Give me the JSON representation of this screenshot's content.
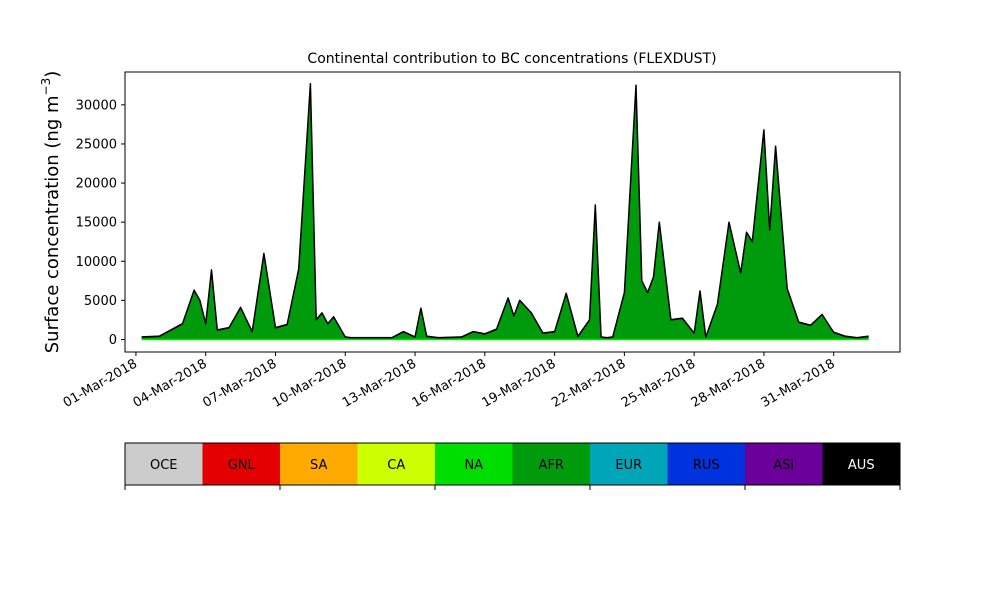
{
  "chart_data": {
    "type": "area",
    "title": "Continental contribution to BC concentrations (FLEXDUST)",
    "ylabel": "Surface concentration (ng m",
    "ylabel_exponent": "−3",
    "ylabel_close": ")",
    "xlabel": "",
    "x_start": "2018-03-01",
    "x_end": "2018-04-02",
    "ylim": [
      -1600,
      34200
    ],
    "x_tick_labels": [
      "01-Mar-2018",
      "04-Mar-2018",
      "07-Mar-2018",
      "10-Mar-2018",
      "13-Mar-2018",
      "16-Mar-2018",
      "19-Mar-2018",
      "22-Mar-2018",
      "25-Mar-2018",
      "28-Mar-2018",
      "31-Mar-2018"
    ],
    "x_tick_dates": [
      "2018-03-01",
      "2018-03-04",
      "2018-03-07",
      "2018-03-10",
      "2018-03-13",
      "2018-03-16",
      "2018-03-19",
      "2018-03-22",
      "2018-03-25",
      "2018-03-28",
      "2018-03-31"
    ],
    "y_ticks": [
      0,
      5000,
      10000,
      15000,
      20000,
      25000,
      30000
    ],
    "y_tick_labels": [
      "0",
      "5000",
      "10000",
      "15000",
      "20000",
      "25000",
      "30000"
    ],
    "grid": false,
    "dominant_series": "AFR",
    "series_colors": {
      "OCE": "#cccccc",
      "GNL": "#e50000",
      "SA": "#ffaa00",
      "CA": "#ccff00",
      "NA": "#00dd00",
      "AFR": "#009a0d",
      "EUR": "#00a6b8",
      "RUS": "#0033dd",
      "ASI": "#6a0099",
      "AUS": "#000000"
    },
    "total": {
      "x": [
        "2018-03-01 06:00",
        "2018-03-02 00:00",
        "2018-03-03 00:00",
        "2018-03-03 12:00",
        "2018-03-03 18:00",
        "2018-03-04 00:00",
        "2018-03-04 06:00",
        "2018-03-04 12:00",
        "2018-03-05 00:00",
        "2018-03-05 12:00",
        "2018-03-06 00:00",
        "2018-03-06 12:00",
        "2018-03-07 00:00",
        "2018-03-07 12:00",
        "2018-03-08 00:00",
        "2018-03-08 12:00",
        "2018-03-08 18:00",
        "2018-03-09 00:00",
        "2018-03-09 06:00",
        "2018-03-09 12:00",
        "2018-03-10 00:00",
        "2018-03-10 06:00",
        "2018-03-11 00:00",
        "2018-03-12 00:00",
        "2018-03-12 12:00",
        "2018-03-13 00:00",
        "2018-03-13 06:00",
        "2018-03-13 12:00",
        "2018-03-14 00:00",
        "2018-03-15 00:00",
        "2018-03-15 12:00",
        "2018-03-16 00:00",
        "2018-03-16 12:00",
        "2018-03-17 00:00",
        "2018-03-17 06:00",
        "2018-03-17 12:00",
        "2018-03-18 00:00",
        "2018-03-18 12:00",
        "2018-03-19 00:00",
        "2018-03-19 12:00",
        "2018-03-20 00:00",
        "2018-03-20 12:00",
        "2018-03-20 18:00",
        "2018-03-21 00:00",
        "2018-03-21 06:00",
        "2018-03-21 12:00",
        "2018-03-22 00:00",
        "2018-03-22 12:00",
        "2018-03-22 18:00",
        "2018-03-23 00:00",
        "2018-03-23 06:00",
        "2018-03-23 12:00",
        "2018-03-24 00:00",
        "2018-03-24 12:00",
        "2018-03-25 00:00",
        "2018-03-25 06:00",
        "2018-03-25 12:00",
        "2018-03-26 00:00",
        "2018-03-26 12:00",
        "2018-03-27 00:00",
        "2018-03-27 06:00",
        "2018-03-27 12:00",
        "2018-03-28 00:00",
        "2018-03-28 06:00",
        "2018-03-28 12:00",
        "2018-03-29 00:00",
        "2018-03-29 12:00",
        "2018-03-30 00:00",
        "2018-03-30 12:00",
        "2018-03-31 00:00",
        "2018-03-31 12:00",
        "2018-04-01 00:00",
        "2018-04-01 12:00"
      ],
      "y": [
        300,
        400,
        2000,
        6300,
        5000,
        2000,
        8900,
        1200,
        1500,
        4100,
        1000,
        11000,
        1500,
        1900,
        9000,
        32700,
        2500,
        3400,
        2000,
        2900,
        300,
        200,
        200,
        200,
        1000,
        300,
        4000,
        400,
        200,
        300,
        1000,
        700,
        1300,
        5300,
        3000,
        5000,
        3400,
        800,
        1000,
        5900,
        400,
        2500,
        17200,
        300,
        200,
        300,
        6000,
        32500,
        7500,
        6000,
        8000,
        15000,
        2500,
        2700,
        800,
        6200,
        300,
        4500,
        15000,
        8500,
        13700,
        12500,
        26800,
        14000,
        24700,
        6500,
        2200,
        1800,
        3200,
        900,
        400,
        200,
        400
      ]
    },
    "legend": {
      "labels": [
        "OCE",
        "GNL",
        "SA",
        "CA",
        "NA",
        "AFR",
        "EUR",
        "RUS",
        "ASI",
        "AUS"
      ],
      "colors": [
        "#cccccc",
        "#e50000",
        "#ffaa00",
        "#ccff00",
        "#00dd00",
        "#009a0d",
        "#00a6b8",
        "#0033dd",
        "#6a0099",
        "#000000"
      ],
      "text_colors": [
        "#000000",
        "#000000",
        "#000000",
        "#000000",
        "#000000",
        "#000000",
        "#000000",
        "#000000",
        "#000000",
        "#ffffff"
      ]
    }
  }
}
